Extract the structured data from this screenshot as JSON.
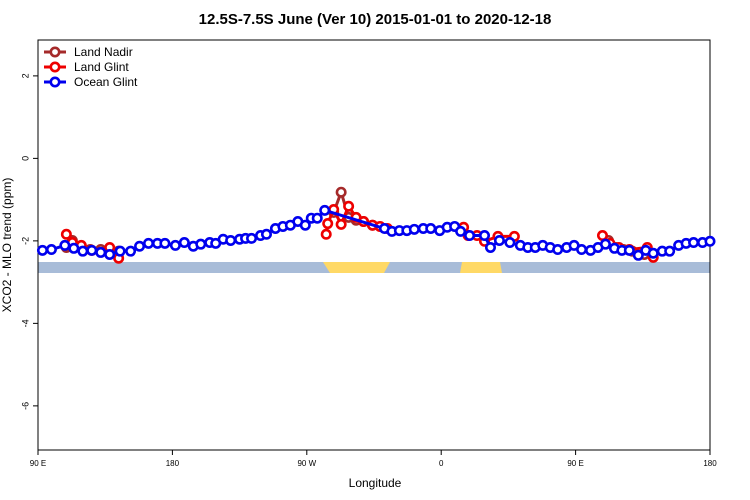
{
  "chart_data": {
    "type": "line",
    "title": "12.5S-7.5S June (Ver 10)   2015-01-01 to 2020-12-18",
    "x_label": "Longitude",
    "y_label": "XCO2 - MLO trend (ppm)",
    "xlim": [
      90,
      540
    ],
    "xticks": [
      {
        "value": 90,
        "label": "90 E"
      },
      180,
      {
        "value": 270,
        "label": "90 W"
      },
      {
        "value": 360,
        "label": "0"
      },
      {
        "value": 450,
        "label": "90 E"
      },
      {
        "value": 540,
        "label": "180"
      }
    ],
    "ylim": [
      -7.07,
      2.87
    ],
    "yticks": [
      -6,
      -4,
      -2,
      0,
      2
    ],
    "legend": "top-left",
    "series": [
      {
        "name": "Land Nadir",
        "color": "#a52a2a",
        "x": [
          109,
          113,
          119,
          125,
          132,
          144,
          null,
          288,
          293,
          298,
          303,
          308,
          314,
          null,
          472,
          477,
          482,
          488,
          496
        ],
        "values": [
          -2.16,
          -1.99,
          -2.16,
          -2.21,
          -2.21,
          -2.25,
          null,
          -1.31,
          -0.82,
          -1.43,
          -1.5,
          -1.53,
          -1.62,
          null,
          -1.99,
          -2.16,
          -2.21,
          -2.25,
          -2.33
        ]
      },
      {
        "name": "Land Glint",
        "color": "#ee0000",
        "x": [
          109,
          113,
          119,
          126,
          138,
          144,
          null,
          283,
          284,
          288,
          293,
          298,
          303,
          308,
          314,
          319,
          324,
          null,
          375,
          378,
          384,
          389,
          398,
          409,
          null,
          468,
          473,
          479,
          486,
          498,
          502
        ],
        "values": [
          -1.84,
          -2.04,
          -2.11,
          -2.23,
          -2.16,
          -2.42,
          null,
          -1.84,
          -1.58,
          -1.24,
          -1.6,
          -1.16,
          -1.43,
          -1.53,
          -1.62,
          -1.65,
          -1.7,
          null,
          -1.67,
          -1.87,
          -1.87,
          -2.01,
          -1.89,
          -1.89,
          null,
          -1.87,
          -2.06,
          -2.16,
          -2.21,
          -2.16,
          -2.4
        ]
      },
      {
        "name": "Ocean Glint",
        "color": "#0000ee",
        "x": [
          93,
          99,
          108,
          114,
          120,
          126,
          132,
          138,
          145,
          152,
          158,
          164,
          170,
          175,
          182,
          188,
          194,
          199,
          205,
          209,
          214,
          219,
          225,
          229,
          233,
          239,
          243,
          249,
          254,
          259,
          264,
          269,
          273,
          277,
          282,
          322,
          327,
          332,
          337,
          342,
          348,
          353,
          359,
          364,
          369,
          373,
          379,
          389,
          393,
          399,
          406,
          413,
          418,
          423,
          428,
          433,
          438,
          444,
          449,
          454,
          460,
          465,
          470,
          476,
          481,
          486,
          492,
          497,
          502,
          508,
          513,
          519,
          524,
          529,
          535,
          540
        ],
        "values": [
          -2.23,
          -2.21,
          -2.11,
          -2.18,
          -2.25,
          -2.23,
          -2.28,
          -2.33,
          -2.25,
          -2.25,
          -2.13,
          -2.06,
          -2.06,
          -2.06,
          -2.11,
          -2.04,
          -2.13,
          -2.08,
          -2.04,
          -2.06,
          -1.96,
          -1.99,
          -1.96,
          -1.94,
          -1.94,
          -1.87,
          -1.84,
          -1.7,
          -1.65,
          -1.62,
          -1.53,
          -1.62,
          -1.45,
          -1.45,
          -1.26,
          -1.7,
          -1.77,
          -1.75,
          -1.75,
          -1.72,
          -1.7,
          -1.7,
          -1.75,
          -1.67,
          -1.65,
          -1.77,
          -1.87,
          -1.87,
          -2.16,
          -1.99,
          -2.04,
          -2.11,
          -2.16,
          -2.16,
          -2.11,
          -2.16,
          -2.21,
          -2.16,
          -2.11,
          -2.21,
          -2.23,
          -2.16,
          -2.08,
          -2.18,
          -2.23,
          -2.23,
          -2.35,
          -2.23,
          -2.3,
          -2.25,
          -2.25,
          -2.11,
          -2.06,
          -2.04,
          -2.04,
          -2.01
        ]
      }
    ]
  }
}
